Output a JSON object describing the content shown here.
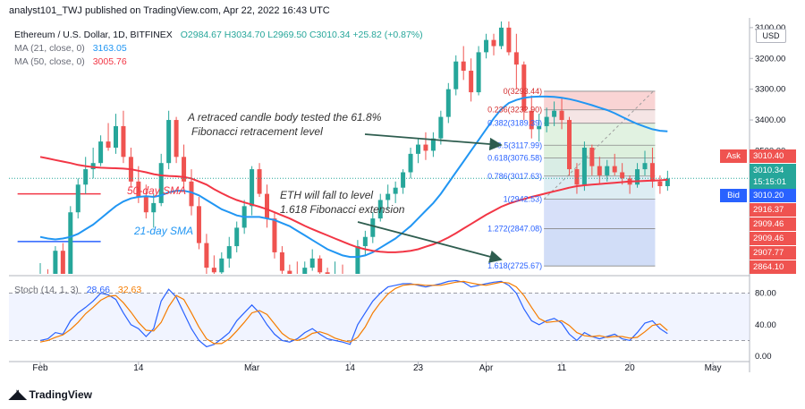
{
  "header": {
    "published": "analyst101_TWJ published on TradingView.com, Apr 22, 2022 16:43 UTC"
  },
  "legend": {
    "symbol": "Ethereum / U.S. Dollar, 1D, BITFINEX",
    "ohlc": "O2984.67  H3034.70  L2969.50  C3010.34  +25.82 (+0.87%)",
    "ma21_label": "MA (21, close, 0)",
    "ma21_value": "3163.05",
    "ma50_label": "MA (50, close, 0)",
    "ma50_value": "3005.76",
    "stoch_label": "Stoch (14, 1, 3)",
    "stoch_k": "28.66",
    "stoch_d": "32.63"
  },
  "price_axis": {
    "currency": "USD",
    "ticks": [
      "3500.00",
      "3400.00",
      "3300.00",
      "3200.00",
      "3100.00"
    ],
    "stoch_ticks": [
      "80.00",
      "40.00",
      "0.00"
    ]
  },
  "price_boxes": {
    "ask_tag": "Ask",
    "ask": "3010.40",
    "last": "3010.34",
    "countdown": "15:15:01",
    "bid_tag": "Bid",
    "bid": "3010.20",
    "levels": [
      "2916.37",
      "2909.46",
      "2909.46",
      "2907.77",
      "2864.10"
    ]
  },
  "colors": {
    "up": "#26a69a",
    "down": "#ef5350",
    "ma21": "#2196f3",
    "ma50": "#f23645",
    "stoch_k": "#2962ff",
    "stoch_d": "#f57c00",
    "annotation": "#333333"
  },
  "annotations": {
    "fib_note_line1": "A retraced candle body tested the 61.8%",
    "fib_note_line2": "Fibonacci retracement level",
    "fall_note_line1": "ETH will fall to level",
    "fall_note_line2": "1.618 Fibonacci extension",
    "sma50_label": "50-day SMA",
    "sma21_label": "21-day SMA"
  },
  "footer": {
    "brand": "TradingView",
    "logo": "tradingview-logo-icon"
  },
  "chart_data": {
    "type": "candlestick",
    "x_ticks": [
      "Feb",
      "14",
      "Mar",
      "14",
      "23",
      "Apr",
      "11",
      "20",
      "May"
    ],
    "x_tick_days": [
      0,
      13,
      28,
      41,
      50,
      59,
      69,
      78,
      89
    ],
    "ylim": [
      2700,
      3520
    ],
    "y_ticks": [
      3100,
      3200,
      3300,
      3400,
      3500
    ],
    "candles_ohlc": [
      [
        2690,
        2735,
        2660,
        2700
      ],
      [
        2700,
        2715,
        2655,
        2670
      ],
      [
        2670,
        2790,
        2660,
        2775
      ],
      [
        2775,
        2800,
        2680,
        2690
      ],
      [
        2690,
        2920,
        2680,
        2900
      ],
      [
        2900,
        3010,
        2880,
        2990
      ],
      [
        2990,
        3080,
        2960,
        3040
      ],
      [
        3040,
        3110,
        3010,
        3060
      ],
      [
        3060,
        3150,
        3050,
        3130
      ],
      [
        3130,
        3190,
        3100,
        3110
      ],
      [
        3110,
        3220,
        3090,
        3180
      ],
      [
        3180,
        3230,
        3060,
        3080
      ],
      [
        3080,
        3110,
        2980,
        3000
      ],
      [
        3000,
        3050,
        2930,
        2950
      ],
      [
        2950,
        2990,
        2880,
        2900
      ],
      [
        2900,
        2960,
        2850,
        2930
      ],
      [
        2930,
        3090,
        2920,
        3060
      ],
      [
        3060,
        3230,
        3040,
        3200
      ],
      [
        3200,
        3210,
        3060,
        3080
      ],
      [
        3080,
        3120,
        2970,
        3000
      ],
      [
        3000,
        3040,
        2890,
        2920
      ],
      [
        2920,
        2950,
        2780,
        2800
      ],
      [
        2800,
        2830,
        2690,
        2720
      ],
      [
        2720,
        2760,
        2680,
        2705
      ],
      [
        2705,
        2770,
        2690,
        2750
      ],
      [
        2750,
        2820,
        2720,
        2790
      ],
      [
        2790,
        2870,
        2770,
        2850
      ],
      [
        2850,
        2940,
        2830,
        2920
      ],
      [
        2920,
        3050,
        2890,
        3040
      ],
      [
        3040,
        3060,
        2950,
        2960
      ],
      [
        2960,
        2990,
        2850,
        2880
      ],
      [
        2880,
        2900,
        2750,
        2770
      ],
      [
        2770,
        2790,
        2690,
        2710
      ],
      [
        2710,
        2730,
        2680,
        2700
      ],
      [
        2700,
        2740,
        2660,
        2690
      ],
      [
        2690,
        2740,
        2660,
        2720
      ],
      [
        2720,
        2780,
        2710,
        2750
      ],
      [
        2750,
        2760,
        2690,
        2705
      ],
      [
        2705,
        2720,
        2670,
        2690
      ],
      [
        2690,
        2740,
        2670,
        2700
      ],
      [
        2700,
        2730,
        2660,
        2680
      ],
      [
        2680,
        2700,
        2640,
        2660
      ],
      [
        2660,
        2810,
        2650,
        2790
      ],
      [
        2790,
        2840,
        2760,
        2820
      ],
      [
        2820,
        2900,
        2800,
        2880
      ],
      [
        2880,
        2960,
        2870,
        2940
      ],
      [
        2940,
        2990,
        2910,
        2960
      ],
      [
        2960,
        3000,
        2930,
        2980
      ],
      [
        2980,
        3040,
        2960,
        3030
      ],
      [
        3030,
        3110,
        3010,
        3090
      ],
      [
        3090,
        3140,
        3060,
        3120
      ],
      [
        3120,
        3160,
        3070,
        3100
      ],
      [
        3100,
        3160,
        3080,
        3140
      ],
      [
        3140,
        3230,
        3120,
        3210
      ],
      [
        3210,
        3320,
        3190,
        3300
      ],
      [
        3300,
        3410,
        3280,
        3390
      ],
      [
        3390,
        3440,
        3330,
        3360
      ],
      [
        3360,
        3400,
        3260,
        3290
      ],
      [
        3290,
        3440,
        3280,
        3420
      ],
      [
        3420,
        3480,
        3400,
        3460
      ],
      [
        3460,
        3480,
        3410,
        3440
      ],
      [
        3440,
        3520,
        3430,
        3500
      ],
      [
        3500,
        3530,
        3410,
        3420
      ],
      [
        3420,
        3480,
        3300,
        3380
      ],
      [
        3380,
        3390,
        3200,
        3230
      ],
      [
        3230,
        3280,
        3140,
        3170
      ],
      [
        3170,
        3220,
        3130,
        3180
      ],
      [
        3180,
        3240,
        3160,
        3210
      ],
      [
        3210,
        3260,
        3180,
        3230
      ],
      [
        3230,
        3270,
        3170,
        3200
      ],
      [
        3200,
        3210,
        3020,
        3040
      ],
      [
        3040,
        3060,
        2960,
        2990
      ],
      [
        2990,
        3130,
        2970,
        3110
      ],
      [
        3110,
        3120,
        3020,
        3050
      ],
      [
        3050,
        3080,
        2990,
        3020
      ],
      [
        3020,
        3070,
        3000,
        3050
      ],
      [
        3050,
        3090,
        3020,
        3030
      ],
      [
        3030,
        3060,
        2990,
        3010
      ],
      [
        3010,
        3020,
        2960,
        2990
      ],
      [
        2990,
        3060,
        2980,
        3040
      ],
      [
        3040,
        3100,
        3020,
        3060
      ],
      [
        3060,
        3110,
        2980,
        3000
      ],
      [
        3000,
        3020,
        2960,
        2985
      ],
      [
        2985,
        3035,
        2970,
        3010
      ]
    ],
    "ma21": [
      2820,
      2815,
      2812,
      2815,
      2820,
      2830,
      2845,
      2860,
      2880,
      2900,
      2920,
      2935,
      2945,
      2950,
      2952,
      2950,
      2955,
      2965,
      2970,
      2970,
      2965,
      2955,
      2940,
      2925,
      2910,
      2900,
      2890,
      2885,
      2885,
      2885,
      2880,
      2875,
      2865,
      2855,
      2840,
      2825,
      2810,
      2795,
      2780,
      2770,
      2760,
      2755,
      2755,
      2760,
      2770,
      2785,
      2800,
      2815,
      2835,
      2855,
      2880,
      2905,
      2930,
      2960,
      2995,
      3030,
      3065,
      3100,
      3135,
      3170,
      3205,
      3235,
      3255,
      3265,
      3272,
      3275,
      3276,
      3276,
      3275,
      3272,
      3268,
      3262,
      3255,
      3248,
      3240,
      3232,
      3222,
      3210,
      3198,
      3187,
      3178,
      3170,
      3165,
      3163
    ],
    "ma50": [
      3080,
      3075,
      3070,
      3065,
      3060,
      3054,
      3050,
      3047,
      3045,
      3044,
      3043,
      3042,
      3040,
      3035,
      3030,
      3024,
      3020,
      3018,
      3017,
      3015,
      3010,
      3000,
      2990,
      2975,
      2962,
      2950,
      2940,
      2932,
      2925,
      2918,
      2910,
      2900,
      2890,
      2880,
      2868,
      2856,
      2845,
      2835,
      2825,
      2815,
      2805,
      2795,
      2786,
      2780,
      2775,
      2772,
      2770,
      2770,
      2772,
      2775,
      2780,
      2788,
      2796,
      2806,
      2818,
      2832,
      2847,
      2862,
      2877,
      2892,
      2905,
      2918,
      2928,
      2936,
      2943,
      2950,
      2956,
      2962,
      2968,
      2974,
      2980,
      2985,
      2988,
      2990,
      2992,
      2994,
      2996,
      2998,
      3000,
      3001,
      3002,
      3003,
      3004,
      3005.76
    ],
    "stoch_k": [
      20,
      22,
      30,
      28,
      45,
      55,
      62,
      70,
      80,
      78,
      72,
      55,
      40,
      35,
      25,
      35,
      70,
      85,
      75,
      55,
      35,
      20,
      12,
      15,
      22,
      30,
      45,
      55,
      65,
      55,
      40,
      28,
      20,
      18,
      22,
      30,
      35,
      28,
      22,
      20,
      18,
      15,
      40,
      55,
      70,
      80,
      88,
      90,
      92,
      92,
      90,
      88,
      90,
      92,
      95,
      96,
      94,
      88,
      90,
      92,
      94,
      95,
      90,
      80,
      60,
      45,
      40,
      45,
      48,
      42,
      28,
      20,
      30,
      25,
      22,
      25,
      28,
      22,
      20,
      30,
      42,
      45,
      35,
      28.66
    ],
    "stoch_d": [
      18,
      20,
      24,
      27,
      34,
      43,
      54,
      62,
      71,
      76,
      77,
      68,
      56,
      43,
      33,
      32,
      43,
      63,
      77,
      72,
      55,
      37,
      22,
      16,
      16,
      22,
      32,
      43,
      55,
      58,
      53,
      41,
      29,
      22,
      20,
      23,
      29,
      31,
      28,
      23,
      20,
      18,
      24,
      37,
      55,
      68,
      79,
      86,
      90,
      91,
      91,
      90,
      90,
      90,
      92,
      94,
      95,
      93,
      91,
      90,
      92,
      94,
      93,
      88,
      77,
      62,
      48,
      43,
      44,
      45,
      39,
      30,
      26,
      25,
      26,
      24,
      25,
      25,
      23,
      24,
      31,
      39,
      41,
      32.63
    ],
    "stoch_ylim": [
      0,
      100
    ],
    "stoch_bands": [
      20,
      80
    ],
    "fibonacci": {
      "levels": [
        {
          "ratio": "0",
          "price": 3293.44
        },
        {
          "ratio": "0.236",
          "price": 3232.9
        },
        {
          "ratio": "0.382",
          "price": 3189.39
        },
        {
          "ratio": "0.5",
          "price": 3117.99
        },
        {
          "ratio": "0.618",
          "price": 3076.58
        },
        {
          "ratio": "0.786",
          "price": 3017.63
        },
        {
          "ratio": "1",
          "price": 2942.53
        },
        {
          "ratio": "1.272",
          "price": 2847.08
        },
        {
          "ratio": "1.618",
          "price": 2725.67
        }
      ],
      "labels": [
        "0(3293.44)",
        "0.236(3232.90)",
        "0.382(3189.39)",
        "0.5(3117.99)",
        "0.618(3076.58)",
        "0.786(3017.63)",
        "1(2942.53)",
        "1.272(2847.08)",
        "1.618(2725.67)"
      ]
    },
    "horizontal_lines": [
      {
        "price": 2960,
        "color": "#f23645",
        "from_day": -3,
        "to_day": 8
      },
      {
        "price": 2805,
        "color": "#2962ff",
        "from_day": -3,
        "to_day": 8
      }
    ]
  }
}
